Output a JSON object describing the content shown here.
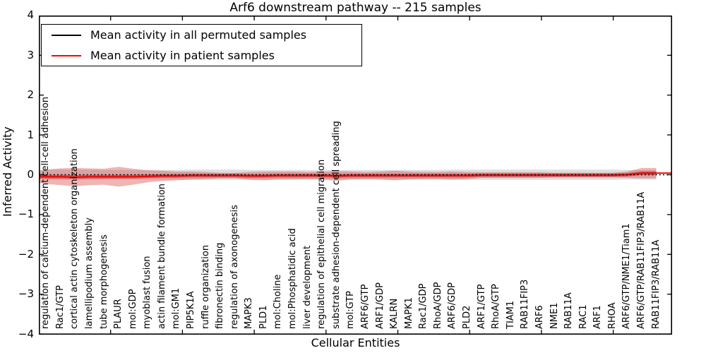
{
  "title": "Arf6 downstream pathway -- 215 samples",
  "axes": {
    "xlabel": "Cellular Entities",
    "ylabel": "Inferred Activity"
  },
  "legend": {
    "items": [
      {
        "label": "Mean activity in all permuted samples",
        "color": "#000000"
      },
      {
        "label": "Mean activity in patient samples",
        "color": "#ff0000"
      }
    ]
  },
  "chart_data": {
    "type": "line",
    "title": "Arf6 downstream pathway -- 215 samples",
    "xlabel": "Cellular Entities",
    "ylabel": "Inferred Activity",
    "ylim": [
      -4,
      4
    ],
    "yticks": [
      4,
      3,
      2,
      1,
      0,
      -1,
      -2,
      -3,
      -4
    ],
    "grid": false,
    "legend_position": "upper left",
    "categories": [
      "regulation of calcium-dependent cell-cell adhesion",
      "Rac1/GTP",
      "cortical actin cytoskeleton organization",
      "lamellipodium assembly",
      "tube morphogenesis",
      "PLAUR",
      "mol:GDP",
      "myoblast fusion",
      "actin filament bundle formation",
      "mol:GM1",
      "PIP5K1A",
      "ruffle organization",
      "fibronectin binding",
      "regulation of axonogenesis",
      "MAPK3",
      "PLD1",
      "mol:Choline",
      "mol:Phosphatidic acid",
      "liver development",
      "regulation of epithelial cell migration",
      "substrate adhesion-dependent cell spreading",
      "mol:GTP",
      "ARF6/GTP",
      "ARF1/GDP",
      "KALRN",
      "MAPK1",
      "Rac1/GDP",
      "RhoA/GDP",
      "ARF6/GDP",
      "PLD2",
      "ARF1/GTP",
      "RhoA/GTP",
      "TIAM1",
      "RAB11FIP3",
      "ARF6",
      "NME1",
      "RAB11A",
      "RAC1",
      "ARF1",
      "RHOA",
      "ARF6/GTP/NME1/Tiam1",
      "ARF6/GTP/RAB11FIP3/RAB11A",
      "RAB11FIP3/RAB11A"
    ],
    "series": [
      {
        "name": "Mean activity in all permuted samples",
        "color": "#000000",
        "line_style": "dashed",
        "mean": [
          0,
          0,
          0,
          0,
          0,
          0,
          0,
          0,
          0,
          0,
          0,
          0,
          0,
          0,
          0,
          0,
          0,
          0,
          0,
          0,
          0,
          0,
          0,
          0,
          0,
          0,
          0,
          0,
          0,
          0,
          0,
          0,
          0,
          0,
          0,
          0,
          0,
          0,
          0,
          0,
          0,
          0,
          0
        ],
        "band_halfwidth": [
          0.13,
          0.13,
          0.13,
          0.13,
          0.12,
          0.12,
          0.12,
          0.12,
          0.12,
          0.12,
          0.13,
          0.13,
          0.13,
          0.13,
          0.12,
          0.12,
          0.12,
          0.12,
          0.12,
          0.12,
          0.12,
          0.12,
          0.12,
          0.12,
          0.12,
          0.12,
          0.12,
          0.12,
          0.13,
          0.13,
          0.13,
          0.13,
          0.13,
          0.13,
          0.13,
          0.13,
          0.13,
          0.13,
          0.13,
          0.13,
          0.12,
          0.12,
          0.12
        ],
        "band_color": "#8a8a8a",
        "band_opacity": 0.28
      },
      {
        "name": "Mean activity in patient samples",
        "color": "#ee0000",
        "line_style": "solid",
        "mean": [
          -0.05,
          -0.05,
          -0.06,
          -0.05,
          -0.05,
          -0.05,
          -0.05,
          -0.04,
          -0.03,
          -0.03,
          -0.02,
          -0.02,
          -0.02,
          -0.02,
          -0.03,
          -0.03,
          -0.02,
          -0.02,
          -0.02,
          -0.02,
          -0.03,
          -0.02,
          -0.02,
          -0.02,
          -0.02,
          -0.02,
          -0.02,
          -0.02,
          -0.02,
          -0.02,
          -0.01,
          -0.01,
          -0.01,
          -0.01,
          -0.01,
          -0.01,
          -0.01,
          -0.01,
          -0.01,
          -0.01,
          0.0,
          0.04,
          0.04
        ],
        "band_halfwidth": [
          0.18,
          0.21,
          0.23,
          0.21,
          0.2,
          0.25,
          0.2,
          0.15,
          0.13,
          0.11,
          0.1,
          0.09,
          0.07,
          0.07,
          0.1,
          0.11,
          0.1,
          0.1,
          0.09,
          0.1,
          0.12,
          0.1,
          0.09,
          0.1,
          0.12,
          0.1,
          0.09,
          0.09,
          0.1,
          0.09,
          0.07,
          0.07,
          0.07,
          0.07,
          0.07,
          0.06,
          0.06,
          0.06,
          0.06,
          0.06,
          0.08,
          0.13,
          0.13
        ],
        "band_color": "#d64545",
        "band_opacity": 0.4,
        "inner_band_halfwidth": 0.045,
        "inner_band_color": "#c82020",
        "inner_band_opacity": 0.55
      }
    ]
  }
}
